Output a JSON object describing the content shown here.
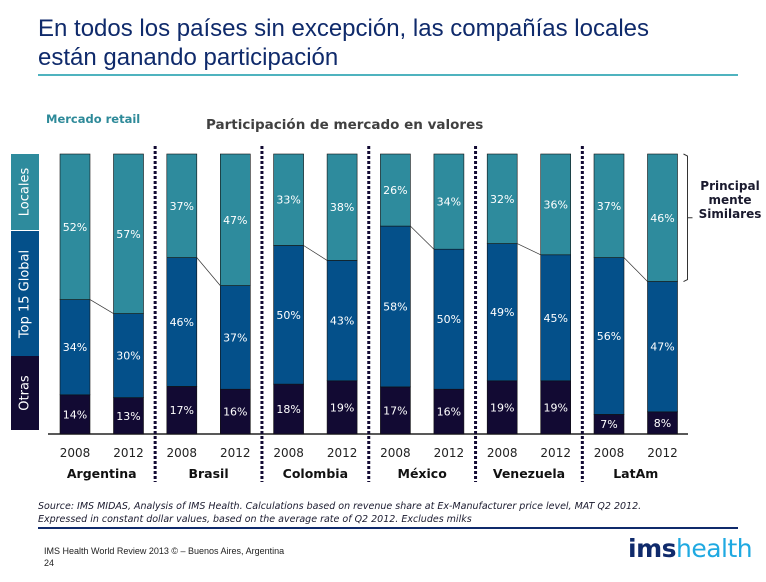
{
  "slide": {
    "title_line1": "En todos los países sin excepción, las compañías locales",
    "title_line2": "están ganando participación",
    "market_label": "Mercado retail",
    "source_line1": "Source: IMS MIDAS, Analysis of IMS Health. Calculations based on revenue share at Ex-Manufacturer price level, MAT Q2 2012.",
    "source_line2": "Expressed in constant dollar values, based on the average rate of Q2 2012. Excludes milks",
    "footer_line1": "IMS Health World Review 2013 © – Buenos Aires, Argentina",
    "footer_page": "24",
    "logo_bold": "ims",
    "logo_light": "health"
  },
  "chart_data": {
    "type": "bar",
    "stacked": true,
    "normalized_percent": true,
    "title": "Participación de mercado en valores",
    "xlabel": "",
    "ylabel": "",
    "ylim": [
      0,
      100
    ],
    "groups": [
      "Argentina",
      "Brasil",
      "Colombia",
      "México",
      "Venezuela",
      "LatAm"
    ],
    "categories": [
      "2008",
      "2012",
      "2008",
      "2012",
      "2008",
      "2012",
      "2008",
      "2012",
      "2008",
      "2012",
      "2008",
      "2012"
    ],
    "series": [
      {
        "name": "Otras",
        "color": "#120a33",
        "values": [
          14,
          13,
          17,
          16,
          18,
          19,
          17,
          16,
          19,
          19,
          7,
          8
        ]
      },
      {
        "name": "Top 15 Global",
        "color": "#04508a",
        "values": [
          34,
          30,
          46,
          37,
          50,
          43,
          58,
          50,
          49,
          45,
          56,
          47
        ]
      },
      {
        "name": "Locales",
        "color": "#2e8b9d",
        "values": [
          52,
          57,
          37,
          47,
          33,
          38,
          26,
          34,
          32,
          36,
          37,
          46
        ]
      }
    ],
    "legend": [
      "Locales",
      "Top 15 Global",
      "Otras"
    ],
    "legend_placement": "left",
    "annotation": {
      "text_lines": [
        "Principal",
        "mente",
        "Similares"
      ],
      "target": "LatAm 2012 Locales"
    }
  }
}
